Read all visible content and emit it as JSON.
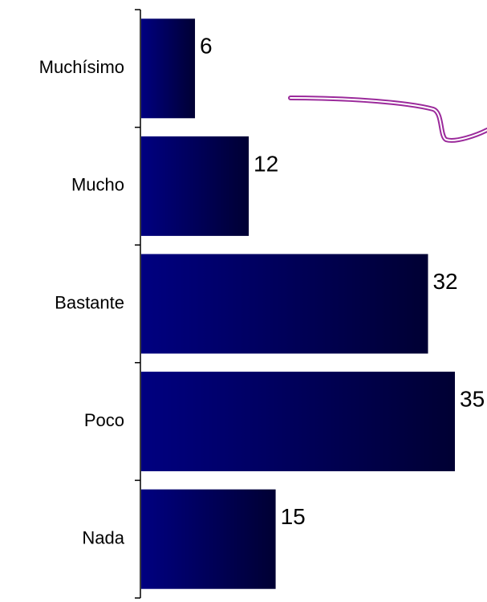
{
  "chart_data": {
    "type": "bar",
    "orientation": "horizontal",
    "categories": [
      "Muchísimo",
      "Mucho",
      "Bastante",
      "Poco",
      "Nada"
    ],
    "values": [
      6,
      12,
      32,
      35,
      15
    ],
    "title": "",
    "xlabel": "",
    "ylabel": "",
    "xlim": [
      0,
      35
    ],
    "grid": false,
    "legend": "none",
    "bar_color_start": "#000080",
    "bar_color_end": "#000033",
    "decoration_color": "#9b2a9b"
  }
}
